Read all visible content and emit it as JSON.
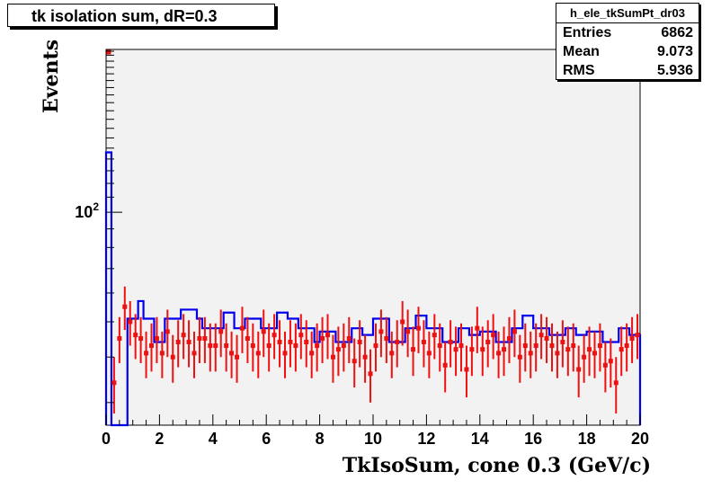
{
  "title": "tk isolation sum, dR=0.3",
  "stats": {
    "name": "h_ele_tkSumPt_dr03",
    "rows": [
      {
        "label": "Entries",
        "value": "6862"
      },
      {
        "label": "Mean",
        "value": "9.073"
      },
      {
        "label": "RMS",
        "value": "5.936"
      }
    ]
  },
  "chart_data": {
    "type": "line",
    "xlabel": "TkIsoSum, cone 0.3 (GeV/c)",
    "ylabel": "Events",
    "xlim": [
      0,
      20
    ],
    "y_scale": "log",
    "ylim": [
      26,
      280
    ],
    "x_ticks": [
      "0",
      "2",
      "4",
      "6",
      "8",
      "10",
      "12",
      "14",
      "16",
      "18",
      "20"
    ],
    "y_ticks": [
      {
        "value": 100,
        "base": "10",
        "exp": "2"
      }
    ],
    "colors": {
      "series1": "#0000ee",
      "series2": "#ee1111",
      "frame_fill": "#f2f2f2"
    },
    "bin_width": 0.2,
    "series": [
      {
        "style": "histogram",
        "values": [
          146,
          26,
          26,
          26,
          51,
          51,
          57,
          51,
          51,
          44,
          44,
          51,
          51,
          51,
          54,
          54,
          54,
          51,
          48,
          48,
          48,
          48,
          53,
          53,
          48,
          48,
          51,
          51,
          51,
          48,
          48,
          48,
          53,
          53,
          51,
          51,
          48,
          48,
          48,
          44,
          47,
          47,
          47,
          44,
          44,
          44,
          48,
          48,
          46,
          46,
          51,
          51,
          51,
          44,
          44,
          44,
          48,
          48,
          52,
          52,
          48,
          48,
          48,
          44,
          44,
          44,
          48,
          48,
          46,
          46,
          47,
          47,
          47,
          44,
          44,
          44,
          48,
          48,
          52,
          52,
          48,
          48,
          48,
          46,
          46,
          46,
          48,
          48,
          46,
          46,
          47,
          47,
          47,
          44,
          44,
          44,
          48,
          48,
          46,
          46
        ]
      },
      {
        "style": "points",
        "values": [
          285,
          34,
          45,
          55,
          50,
          46,
          45,
          41,
          43,
          45,
          41,
          47,
          40,
          44,
          46,
          44,
          41,
          45,
          45,
          43,
          43,
          47,
          43,
          41,
          40,
          48,
          45,
          43,
          41,
          47,
          43,
          46,
          44,
          41,
          44,
          43,
          46,
          44,
          41,
          43,
          45,
          46,
          40,
          42,
          43,
          45,
          39,
          44,
          40,
          36,
          43,
          47,
          45,
          41,
          44,
          50,
          47,
          42,
          48,
          44,
          41,
          46,
          43,
          38,
          44,
          42,
          43,
          37,
          42,
          48,
          42,
          44,
          46,
          41,
          42,
          45,
          47,
          40,
          43,
          41,
          43,
          46,
          45,
          43,
          41,
          44,
          42,
          43,
          37,
          40,
          42,
          41,
          43,
          38,
          39,
          34,
          42,
          43,
          45,
          46
        ],
        "errors": [
          0,
          6,
          6.5,
          7.5,
          7,
          6.5,
          6.5,
          6,
          6.5,
          6.5,
          6,
          7,
          6,
          6.5,
          6.5,
          6.5,
          6,
          6.5,
          6.5,
          6.5,
          6.5,
          7,
          6.5,
          6,
          6,
          7,
          6.5,
          6.5,
          6,
          7,
          6.5,
          6.5,
          6.5,
          6,
          6.5,
          6.5,
          6.5,
          6.5,
          6,
          6.5,
          6.5,
          6.5,
          6,
          6.5,
          6.5,
          6.5,
          6,
          6.5,
          6,
          6,
          6.5,
          7,
          6.5,
          6,
          6.5,
          7,
          7,
          6.5,
          7,
          6.5,
          6,
          6.5,
          6.5,
          6,
          6.5,
          6.5,
          6.5,
          6,
          6.5,
          7,
          6.5,
          6.5,
          6.5,
          6,
          6.5,
          6.5,
          7,
          6,
          6.5,
          6,
          6.5,
          6.5,
          6.5,
          6.5,
          6,
          6.5,
          6.5,
          6.5,
          6,
          6,
          6.5,
          6,
          6.5,
          6,
          6,
          6,
          6.5,
          6.5,
          6.5,
          6.5
        ]
      }
    ]
  }
}
